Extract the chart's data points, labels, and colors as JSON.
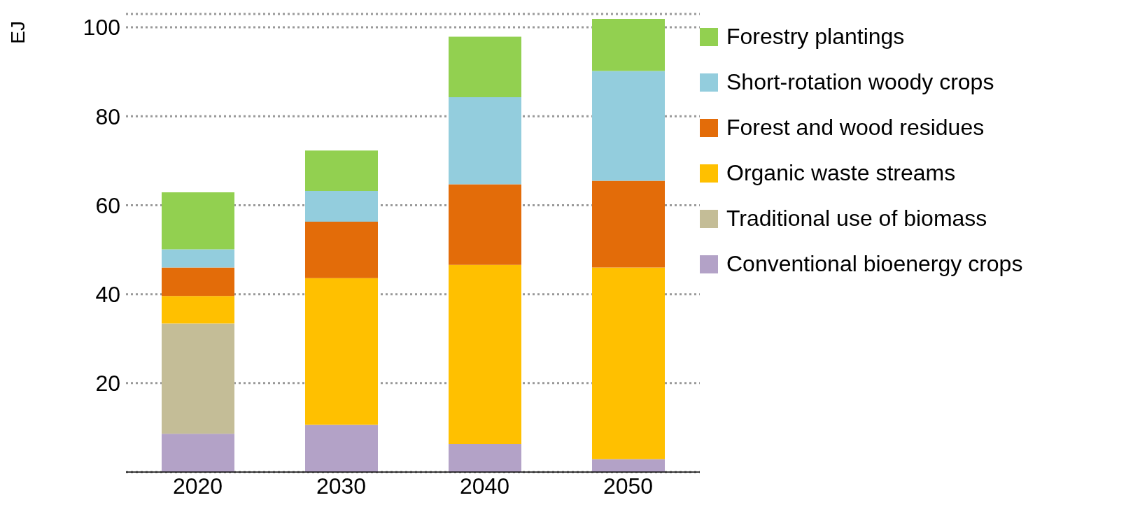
{
  "chart_data": {
    "type": "bar",
    "stacked": true,
    "ylabel": "EJ",
    "categories": [
      "2020",
      "2030",
      "2040",
      "2050"
    ],
    "series": [
      {
        "name": "Conventional bioenergy crops",
        "color": "#b3a2c7",
        "values": [
          8.6,
          10.6,
          6.3,
          2.9
        ]
      },
      {
        "name": "Traditional use of biomass",
        "color": "#c4bd97",
        "values": [
          24.8,
          0,
          0,
          0
        ]
      },
      {
        "name": "Organic waste streams",
        "color": "#ffc000",
        "values": [
          6.2,
          33,
          40.3,
          43.1
        ]
      },
      {
        "name": "Forest and wood residues",
        "color": "#e36c09",
        "values": [
          6.4,
          12.7,
          18.1,
          19.5
        ]
      },
      {
        "name": "Short-rotation woody crops",
        "color": "#93cddd",
        "values": [
          4.1,
          6.9,
          19.6,
          24.7
        ]
      },
      {
        "name": "Forestry plantings",
        "color": "#92d050",
        "values": [
          12.8,
          9.1,
          13.6,
          11.7
        ]
      }
    ],
    "ylim": [
      0,
      103
    ],
    "yticks": [
      20,
      40,
      60,
      80,
      100
    ],
    "grid": "y",
    "legend": "right"
  }
}
